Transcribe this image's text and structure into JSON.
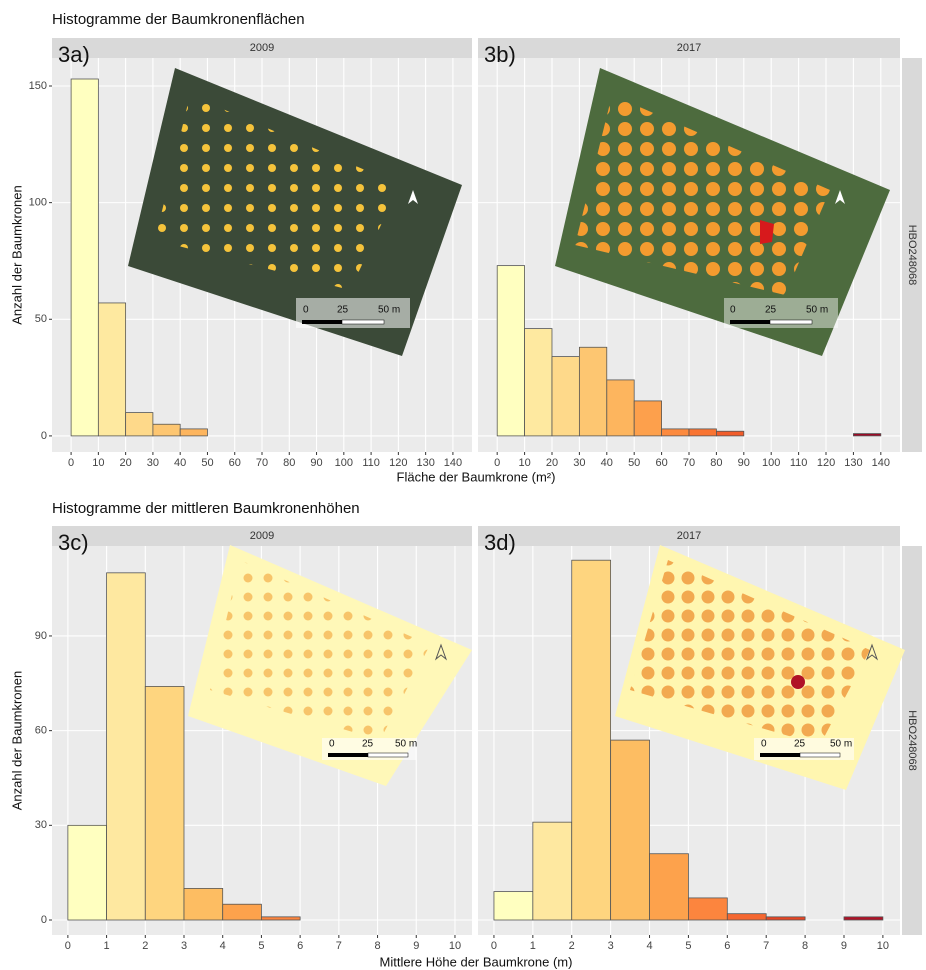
{
  "rows": [
    {
      "title": "Histogramme der Baumkronenflächen",
      "x_label": "Fläche der Baumkrone (m²)",
      "y_label": "Anzahl der Baumkronen"
    },
    {
      "title": "Histogramme der mittleren Baumkronenhöhen",
      "x_label": "Mittlere Höhe der Baumkrone (m)",
      "y_label": "Anzahl der Baumkronen"
    }
  ],
  "chart_data": [
    {
      "type": "histogram",
      "panel_label": "3a)",
      "title": "2009",
      "bins": [
        0,
        10,
        20,
        30,
        40,
        50,
        60,
        70,
        80,
        90,
        100,
        110,
        120,
        130,
        140
      ],
      "values": [
        153,
        57,
        10,
        5,
        3,
        0,
        0,
        0,
        0,
        0,
        0,
        0,
        0,
        0
      ],
      "colors": [
        "#ffffc0",
        "#fee9a0",
        "#fed98a",
        "#fdc671",
        "#fdb55e",
        "#fda04c",
        "#fc8a3e",
        "#f97432",
        "#f15c2a",
        "#e64523",
        "#d52f20",
        "#c21c23",
        "#ae0f26",
        "#9b0a26"
      ],
      "xlim": [
        -7,
        147
      ],
      "xticks": [
        0,
        10,
        20,
        30,
        40,
        50,
        60,
        70,
        80,
        90,
        100,
        110,
        120,
        130,
        140
      ],
      "ylim": [
        -6.9,
        162
      ],
      "yticks": [
        0,
        50,
        100,
        150
      ],
      "scale_labels": [
        "0",
        "25",
        "50 m"
      ]
    },
    {
      "type": "histogram",
      "panel_label": "3b)",
      "title": "2017",
      "facet_label": "HBO248068",
      "bins": [
        0,
        10,
        20,
        30,
        40,
        50,
        60,
        70,
        80,
        90,
        100,
        110,
        120,
        130,
        140
      ],
      "values": [
        73,
        46,
        34,
        38,
        24,
        15,
        3,
        3,
        2,
        0,
        0,
        0,
        0,
        1
      ],
      "colors": [
        "#ffffc0",
        "#fee9a0",
        "#fed98a",
        "#fdc671",
        "#fdb55e",
        "#fda04c",
        "#fc8a3e",
        "#f97432",
        "#f15c2a",
        "#e64523",
        "#d52f20",
        "#c21c23",
        "#ae0f26",
        "#9b0a26"
      ],
      "xlim": [
        -7,
        147
      ],
      "xticks": [
        0,
        10,
        20,
        30,
        40,
        50,
        60,
        70,
        80,
        90,
        100,
        110,
        120,
        130,
        140
      ],
      "ylim": [
        -6.9,
        162
      ],
      "yticks": [
        0,
        50,
        100,
        150
      ],
      "scale_labels": [
        "0",
        "25",
        "50 m"
      ]
    },
    {
      "type": "histogram",
      "panel_label": "3c)",
      "title": "2009",
      "bins": [
        0,
        1,
        2,
        3,
        4,
        5,
        6,
        7,
        8,
        9,
        10
      ],
      "values": [
        30,
        110,
        74,
        10,
        5,
        1,
        0,
        0,
        0,
        0
      ],
      "colors": [
        "#ffffc0",
        "#fee8a0",
        "#fed57f",
        "#fdbd62",
        "#fda24c",
        "#fc853e",
        "#f56730",
        "#e64523",
        "#cf2b21",
        "#b01226"
      ],
      "xlim": [
        -0.41,
        10.44
      ],
      "xticks": [
        0,
        1,
        2,
        3,
        4,
        5,
        6,
        7,
        8,
        9,
        10
      ],
      "ylim": [
        -4.75,
        118.5
      ],
      "yticks": [
        0,
        30,
        60,
        90
      ],
      "scale_labels": [
        "0",
        "25",
        "50 m"
      ]
    },
    {
      "type": "histogram",
      "panel_label": "3d)",
      "title": "2017",
      "facet_label": "HBO248068",
      "bins": [
        0,
        1,
        2,
        3,
        4,
        5,
        6,
        7,
        8,
        9,
        10
      ],
      "values": [
        9,
        31,
        114,
        57,
        21,
        7,
        2,
        1,
        0,
        1
      ],
      "colors": [
        "#ffffc0",
        "#fee8a0",
        "#fed57f",
        "#fdbd62",
        "#fda24c",
        "#fc853e",
        "#f56730",
        "#e64523",
        "#cf2b21",
        "#b01226"
      ],
      "xlim": [
        -0.41,
        10.44
      ],
      "xticks": [
        0,
        1,
        2,
        3,
        4,
        5,
        6,
        7,
        8,
        9,
        10
      ],
      "ylim": [
        -4.75,
        118.5
      ],
      "yticks": [
        0,
        30,
        60,
        90
      ],
      "scale_labels": [
        "0",
        "25",
        "50 m"
      ]
    }
  ]
}
